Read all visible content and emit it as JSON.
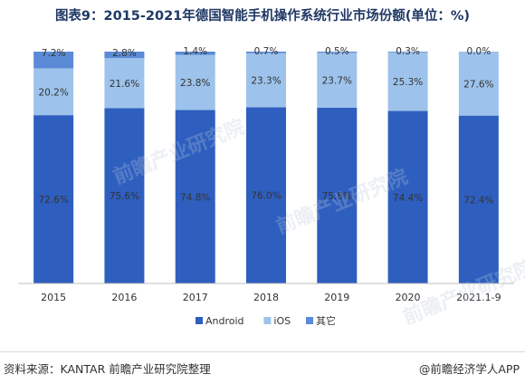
{
  "title": "图表9：2015-2021年德国智能手机操作系统行业市场份额(单位：%)",
  "footer": {
    "source": "资料来源：KANTAR 前瞻产业研究院整理",
    "brand": "@前瞻经济学人APP"
  },
  "watermark": "前瞻产业研究院",
  "colors": {
    "android": "#2e5fbf",
    "ios": "#9dc3ec",
    "other": "#5b8bd6"
  },
  "chart_data": {
    "type": "bar",
    "stacked": true,
    "categories": [
      "2015",
      "2016",
      "2017",
      "2018",
      "2019",
      "2020",
      "2021.1-9"
    ],
    "series": [
      {
        "name": "Android",
        "values": [
          72.6,
          75.6,
          74.8,
          76.0,
          75.8,
          74.4,
          72.4
        ],
        "labels": [
          "72.6%",
          "75.6%",
          "74.8%",
          "76.0%",
          "75.8%",
          "74.4%",
          "72.4%"
        ]
      },
      {
        "name": "iOS",
        "values": [
          20.2,
          21.6,
          23.8,
          23.3,
          23.7,
          25.3,
          27.6
        ],
        "labels": [
          "20.2%",
          "21.6%",
          "23.8%",
          "23.3%",
          "23.7%",
          "25.3%",
          "27.6%"
        ]
      },
      {
        "name": "其它",
        "values": [
          7.2,
          2.8,
          1.4,
          0.7,
          0.5,
          0.3,
          0.0
        ],
        "labels": [
          "7.2%",
          "2.8%",
          "1.4%",
          "0.7%",
          "0.5%",
          "0.3%",
          "0.0%"
        ]
      }
    ],
    "ylim": [
      0,
      100
    ],
    "legend_position": "bottom"
  }
}
